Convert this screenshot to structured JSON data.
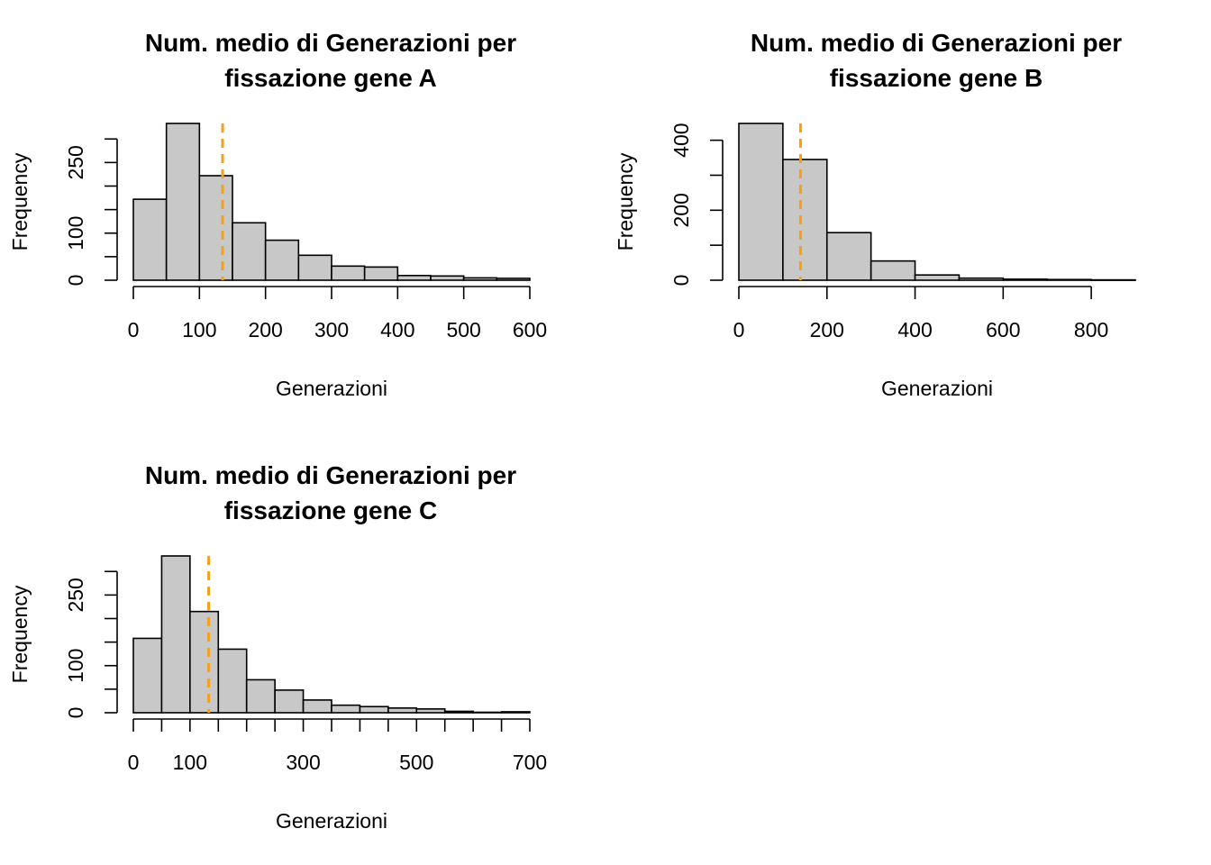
{
  "chart_data": [
    {
      "type": "bar",
      "subtype": "histogram",
      "title_lines": [
        "Num. medio di Generazioni per",
        "fissazione  gene A"
      ],
      "xlabel": "Generazioni",
      "ylabel": "Frequency",
      "bin_edges": [
        0,
        50,
        100,
        150,
        200,
        250,
        300,
        350,
        400,
        450,
        500,
        550,
        600
      ],
      "values": [
        172,
        333,
        222,
        122,
        85,
        53,
        30,
        28,
        10,
        9,
        5,
        4
      ],
      "xlim": [
        0,
        600
      ],
      "ylim": [
        0,
        333
      ],
      "x_ticks": [
        0,
        100,
        200,
        300,
        400,
        500,
        600
      ],
      "x_tick_labels": [
        "0",
        "100",
        "200",
        "300",
        "400",
        "500",
        "600"
      ],
      "y_ticks": [
        0,
        50,
        100,
        150,
        200,
        250,
        300
      ],
      "y_tick_labels": [
        "0",
        "",
        "100",
        "",
        "",
        "250",
        ""
      ],
      "mean_line": {
        "x": 135,
        "color": "#f5a01a",
        "style": "dashed"
      },
      "bar_fill": "#c8c8c8",
      "grid": false
    },
    {
      "type": "bar",
      "subtype": "histogram",
      "title_lines": [
        "Num. medio di Generazioni per",
        "fissazione  gene B"
      ],
      "xlabel": "Generazioni",
      "ylabel": "Frequency",
      "bin_edges": [
        0,
        100,
        200,
        300,
        400,
        500,
        600,
        700,
        800,
        900
      ],
      "values": [
        448,
        345,
        136,
        55,
        15,
        6,
        3,
        2,
        1
      ],
      "xlim": [
        0,
        900
      ],
      "ylim": [
        0,
        448
      ],
      "x_ticks": [
        0,
        200,
        400,
        600,
        800
      ],
      "x_tick_labels": [
        "0",
        "200",
        "400",
        "600",
        "800"
      ],
      "y_ticks": [
        0,
        100,
        200,
        300,
        400
      ],
      "y_tick_labels": [
        "0",
        "",
        "200",
        "",
        "400"
      ],
      "mean_line": {
        "x": 140,
        "color": "#f5a01a",
        "style": "dashed"
      },
      "bar_fill": "#c8c8c8",
      "grid": false
    },
    {
      "type": "bar",
      "subtype": "histogram",
      "title_lines": [
        "Num. medio di Generazioni per",
        "fissazione  gene C"
      ],
      "xlabel": "Generazioni",
      "ylabel": "Frequency",
      "bin_edges": [
        0,
        50,
        100,
        150,
        200,
        250,
        300,
        350,
        400,
        450,
        500,
        550,
        600,
        650,
        700
      ],
      "values": [
        158,
        333,
        215,
        135,
        70,
        48,
        27,
        16,
        13,
        10,
        8,
        3,
        1,
        2
      ],
      "xlim": [
        0,
        700
      ],
      "ylim": [
        0,
        333
      ],
      "x_ticks": [
        0,
        50,
        100,
        150,
        200,
        250,
        300,
        350,
        400,
        450,
        500,
        550,
        600,
        650,
        700
      ],
      "x_tick_labels": [
        "0",
        "",
        "100",
        "",
        "",
        "",
        "300",
        "",
        "",
        "",
        "500",
        "",
        "",
        "",
        "700"
      ],
      "y_ticks": [
        0,
        50,
        100,
        150,
        200,
        250,
        300
      ],
      "y_tick_labels": [
        "0",
        "",
        "100",
        "",
        "",
        "250",
        ""
      ],
      "mean_line": {
        "x": 133,
        "color": "#f5a01a",
        "style": "dashed"
      },
      "bar_fill": "#c8c8c8",
      "grid": false
    }
  ]
}
